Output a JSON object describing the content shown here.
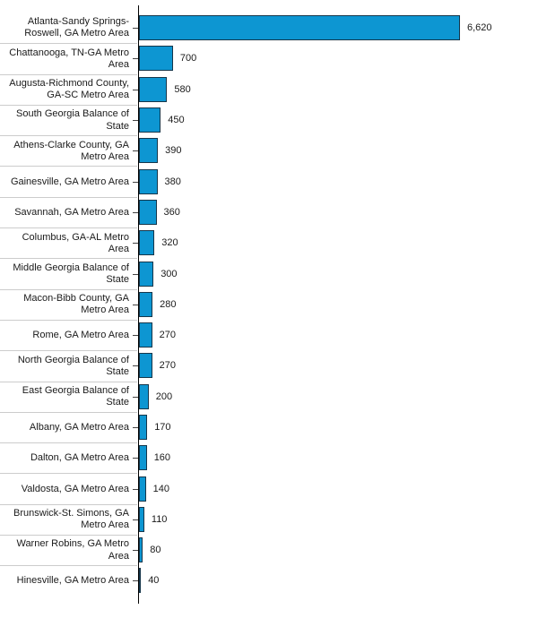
{
  "chart_data": {
    "type": "bar",
    "orientation": "horizontal",
    "xlim": [
      0,
      6620
    ],
    "grid": false,
    "legend": false,
    "categories": [
      "Atlanta-Sandy Springs-Roswell, GA Metro Area",
      "Chattanooga, TN-GA Metro Area",
      "Augusta-Richmond County, GA-SC Metro Area",
      "South Georgia Balance of State",
      "Athens-Clarke County, GA Metro Area",
      "Gainesville, GA Metro Area",
      "Savannah, GA Metro Area",
      "Columbus, GA-AL Metro Area",
      "Middle Georgia Balance of State",
      "Macon-Bibb County, GA Metro Area",
      "Rome, GA Metro Area",
      "North Georgia Balance of State",
      "East Georgia Balance of State",
      "Albany, GA Metro Area",
      "Dalton, GA Metro Area",
      "Valdosta, GA Metro Area",
      "Brunswick-St. Simons, GA Metro Area",
      "Warner Robins, GA Metro Area",
      "Hinesville, GA Metro Area"
    ],
    "values": [
      6620,
      700,
      580,
      450,
      390,
      380,
      360,
      320,
      300,
      280,
      270,
      270,
      200,
      170,
      160,
      140,
      110,
      80,
      40
    ],
    "items": [
      {
        "label": "Atlanta-Sandy Springs-Roswell, GA Metro Area",
        "label_lines": [
          "Atlanta-Sandy Springs-",
          "Roswell, GA Metro Area"
        ],
        "value": 6620,
        "value_label": "6,620"
      },
      {
        "label": "Chattanooga, TN-GA Metro Area",
        "label_lines": [
          "Chattanooga, TN-GA Metro",
          "Area"
        ],
        "value": 700,
        "value_label": "700"
      },
      {
        "label": "Augusta-Richmond County, GA-SC Metro Area",
        "label_lines": [
          "Augusta-Richmond County,",
          "GA-SC Metro Area"
        ],
        "value": 580,
        "value_label": "580"
      },
      {
        "label": "South Georgia Balance of State",
        "label_lines": [
          "South Georgia Balance of",
          "State"
        ],
        "value": 450,
        "value_label": "450"
      },
      {
        "label": "Athens-Clarke County, GA Metro Area",
        "label_lines": [
          "Athens-Clarke County, GA",
          "Metro Area"
        ],
        "value": 390,
        "value_label": "390"
      },
      {
        "label": "Gainesville, GA Metro Area",
        "label_lines": [
          "Gainesville, GA Metro Area"
        ],
        "value": 380,
        "value_label": "380"
      },
      {
        "label": "Savannah, GA Metro Area",
        "label_lines": [
          "Savannah, GA Metro Area"
        ],
        "value": 360,
        "value_label": "360"
      },
      {
        "label": "Columbus, GA-AL Metro Area",
        "label_lines": [
          "Columbus, GA-AL Metro",
          "Area"
        ],
        "value": 320,
        "value_label": "320"
      },
      {
        "label": "Middle Georgia Balance of State",
        "label_lines": [
          "Middle Georgia Balance of",
          "State"
        ],
        "value": 300,
        "value_label": "300"
      },
      {
        "label": "Macon-Bibb County, GA Metro Area",
        "label_lines": [
          "Macon-Bibb County, GA",
          "Metro Area"
        ],
        "value": 280,
        "value_label": "280"
      },
      {
        "label": "Rome, GA Metro Area",
        "label_lines": [
          "Rome, GA Metro Area"
        ],
        "value": 270,
        "value_label": "270"
      },
      {
        "label": "North Georgia Balance of State",
        "label_lines": [
          "North Georgia Balance of",
          "State"
        ],
        "value": 270,
        "value_label": "270"
      },
      {
        "label": "East Georgia Balance of State",
        "label_lines": [
          "East Georgia Balance of",
          "State"
        ],
        "value": 200,
        "value_label": "200"
      },
      {
        "label": "Albany, GA Metro Area",
        "label_lines": [
          "Albany, GA Metro Area"
        ],
        "value": 170,
        "value_label": "170"
      },
      {
        "label": "Dalton, GA Metro Area",
        "label_lines": [
          "Dalton, GA Metro Area"
        ],
        "value": 160,
        "value_label": "160"
      },
      {
        "label": "Valdosta, GA Metro Area",
        "label_lines": [
          "Valdosta, GA Metro Area"
        ],
        "value": 140,
        "value_label": "140"
      },
      {
        "label": "Brunswick-St. Simons, GA Metro Area",
        "label_lines": [
          "Brunswick-St. Simons, GA",
          "Metro Area"
        ],
        "value": 110,
        "value_label": "110"
      },
      {
        "label": "Warner Robins, GA Metro Area",
        "label_lines": [
          "Warner Robins, GA Metro",
          "Area"
        ],
        "value": 80,
        "value_label": "80"
      },
      {
        "label": "Hinesville, GA Metro Area",
        "label_lines": [
          "Hinesville, GA Metro Area"
        ],
        "value": 40,
        "value_label": "40"
      }
    ],
    "colors": {
      "background": "#ffffff",
      "bar_fill": "#0d96d2",
      "bar_border": "#16364a",
      "axis_line": "#000000",
      "tick": "#444444",
      "separator": "#cccccc",
      "label_text": "#1a1a1a",
      "value_text": "#1a1a1a"
    }
  }
}
